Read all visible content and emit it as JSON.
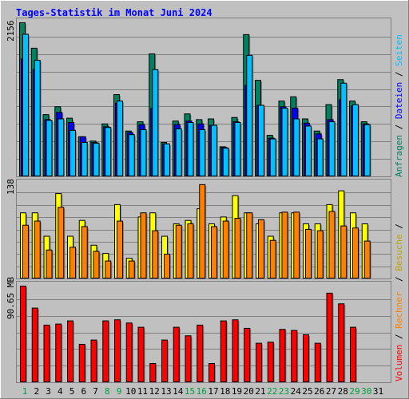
{
  "title": "Tages-Statistik im Monat Juni 2024",
  "colors": {
    "background": "#C0C0C0",
    "frame": "#808080",
    "grid": "#808080",
    "title": "#0000FF",
    "anfragen": "#00805F",
    "dateien": "#0000FF",
    "seiten": "#00C0FF",
    "besuche": "#FFFF00",
    "rechner": "#FF8000",
    "volumen": "#FF0000",
    "weekend_label": "#00A040",
    "weekday_label": "#000000"
  },
  "chart_data": [
    {
      "type": "bar",
      "panel": "top",
      "ymax_label": "2156",
      "ymax": 2156,
      "categories": [
        "1",
        "2",
        "3",
        "4",
        "5",
        "6",
        "7",
        "8",
        "9",
        "10",
        "11",
        "12",
        "13",
        "14",
        "15",
        "16",
        "17",
        "18",
        "19",
        "20",
        "21",
        "22",
        "23",
        "24",
        "25",
        "26",
        "27",
        "28",
        "29",
        "30",
        "31"
      ],
      "series": [
        {
          "name": "Anfragen",
          "values": [
            2156,
            1800,
            870,
            980,
            820,
            560,
            500,
            740,
            1150,
            640,
            770,
            1720,
            480,
            780,
            880,
            800,
            810,
            420,
            830,
            1990,
            1350,
            580,
            1060,
            1120,
            810,
            640,
            1010,
            1360,
            1060,
            770,
            0
          ]
        },
        {
          "name": "Dateien",
          "values": [
            1650,
            1500,
            800,
            900,
            760,
            560,
            480,
            700,
            1030,
            620,
            730,
            960,
            460,
            730,
            780,
            740,
            720,
            410,
            770,
            1280,
            1000,
            540,
            980,
            960,
            750,
            600,
            800,
            1080,
            990,
            740,
            0
          ]
        },
        {
          "name": "Seiten",
          "values": [
            1995,
            1630,
            790,
            810,
            650,
            480,
            470,
            690,
            1060,
            590,
            660,
            1500,
            460,
            670,
            760,
            660,
            720,
            400,
            760,
            1700,
            1000,
            530,
            960,
            810,
            710,
            530,
            770,
            1310,
            1010,
            730,
            0
          ]
        }
      ],
      "legend": [
        "Anfragen",
        "Dateien",
        "Seiten"
      ]
    },
    {
      "type": "bar",
      "panel": "middle",
      "ymax_label": "138",
      "ymax": 138,
      "categories": [
        "1",
        "2",
        "3",
        "4",
        "5",
        "6",
        "7",
        "8",
        "9",
        "10",
        "11",
        "12",
        "13",
        "14",
        "15",
        "16",
        "17",
        "18",
        "19",
        "20",
        "21",
        "22",
        "23",
        "24",
        "25",
        "26",
        "27",
        "28",
        "29",
        "30",
        "31"
      ],
      "series": [
        {
          "name": "Besuche",
          "values": [
            96,
            96,
            62,
            124,
            62,
            85,
            49,
            37,
            108,
            30,
            90,
            96,
            62,
            80,
            85,
            102,
            80,
            90,
            121,
            96,
            80,
            62,
            96,
            96,
            80,
            80,
            108,
            128,
            96,
            80,
            0
          ]
        },
        {
          "name": "Rechner",
          "values": [
            78,
            84,
            42,
            104,
            46,
            76,
            40,
            26,
            84,
            26,
            96,
            70,
            36,
            78,
            80,
            137,
            76,
            84,
            88,
            96,
            86,
            56,
            97,
            97,
            72,
            70,
            98,
            77,
            74,
            55,
            0
          ]
        }
      ],
      "legend": [
        "Besuche",
        "Rechner"
      ]
    },
    {
      "type": "bar",
      "panel": "bottom",
      "ymax_label": "90.65 MB",
      "ymax": 90.65,
      "categories": [
        "1",
        "2",
        "3",
        "4",
        "5",
        "6",
        "7",
        "8",
        "9",
        "10",
        "11",
        "12",
        "13",
        "14",
        "15",
        "16",
        "17",
        "18",
        "19",
        "20",
        "21",
        "22",
        "23",
        "24",
        "25",
        "26",
        "27",
        "28",
        "29",
        "30",
        "31"
      ],
      "series": [
        {
          "name": "Volumen",
          "values": [
            90.65,
            70,
            54,
            55,
            58,
            36,
            40,
            58,
            59,
            56,
            52,
            18,
            40,
            52,
            44,
            54,
            18,
            58,
            59,
            51,
            37,
            38,
            50,
            49,
            45,
            37,
            84,
            74,
            52,
            0,
            0
          ]
        }
      ],
      "legend": [
        "Volumen"
      ]
    }
  ],
  "weekend_days": [
    "1",
    "8",
    "9",
    "15",
    "16",
    "22",
    "23",
    "29",
    "30"
  ],
  "legends": {
    "top": [
      {
        "text": "Anfragen",
        "color": "#00805F"
      },
      {
        "text": " / ",
        "color": "#000000"
      },
      {
        "text": "Dateien",
        "color": "#0000FF"
      },
      {
        "text": " / ",
        "color": "#000000"
      },
      {
        "text": "Seiten",
        "color": "#00C0FF"
      }
    ],
    "mid": [
      {
        "text": " / ",
        "color": "#000000"
      },
      {
        "text": "Besuche",
        "color": "#C0A000"
      },
      {
        "text": " / ",
        "color": "#000000"
      }
    ],
    "bottom": [
      {
        "text": "Volumen",
        "color": "#FF0000"
      },
      {
        "text": " / ",
        "color": "#000000"
      },
      {
        "text": "Rechner",
        "color": "#FF8000"
      }
    ]
  }
}
